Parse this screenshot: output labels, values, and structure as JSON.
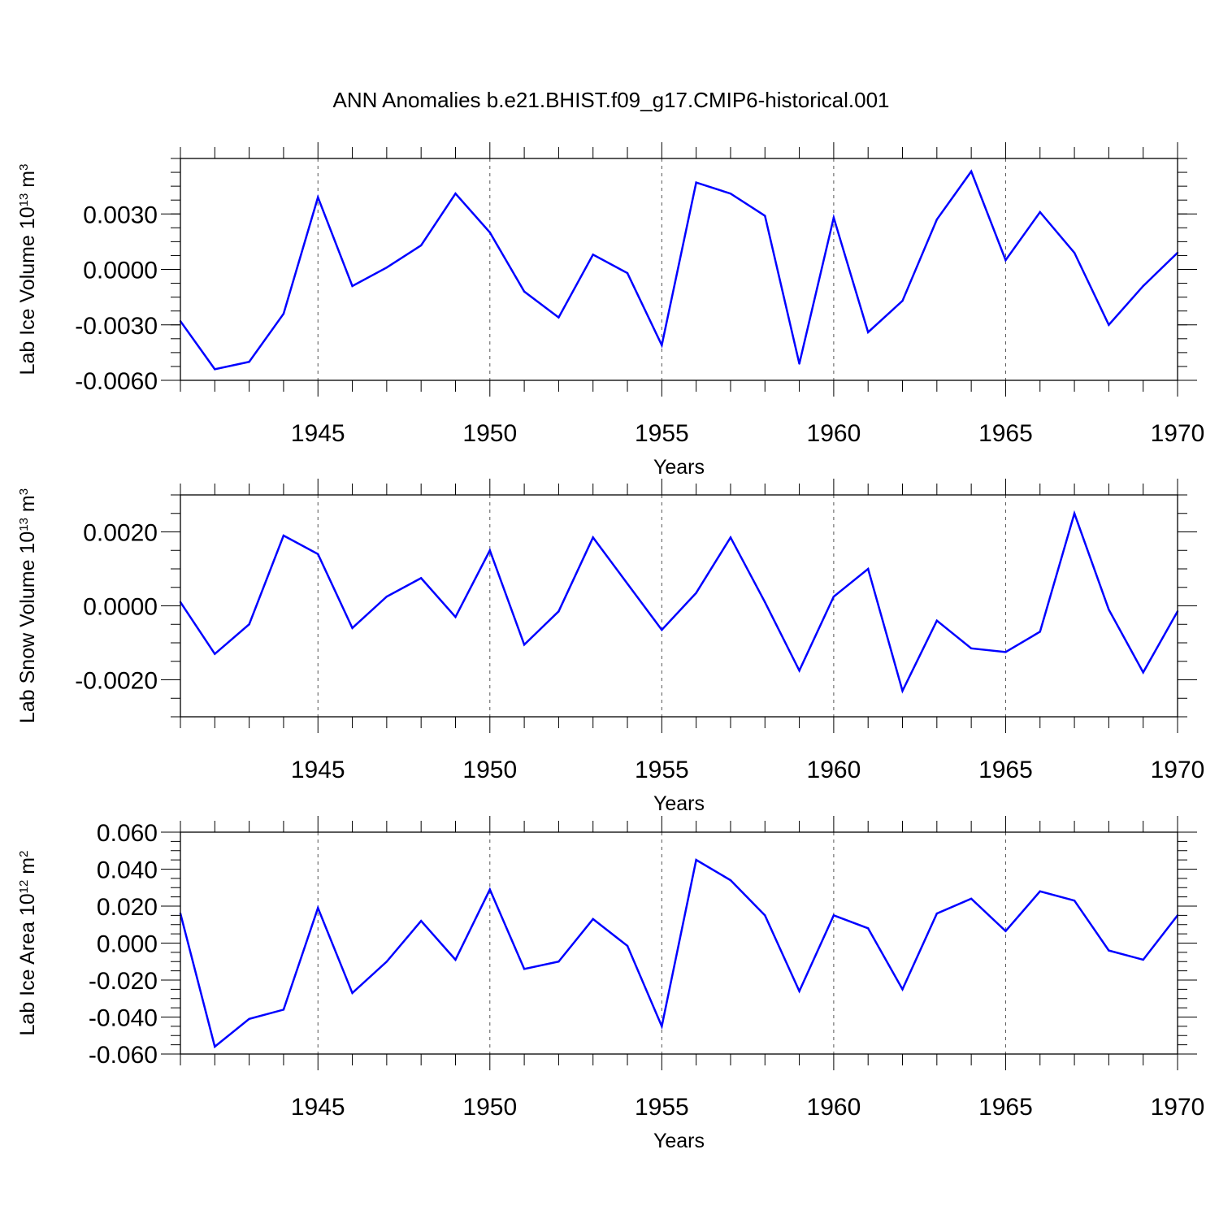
{
  "title": "ANN Anomalies b.e21.BHIST.f09_g17.CMIP6-historical.001",
  "line_color": "#0000ff",
  "chart_data": [
    {
      "type": "line",
      "name": "lab-ice-volume",
      "ylabel_main": "Lab Ice Volume 10",
      "ylabel_exp": "13",
      "ylabel_unit": " m",
      "ylabel_unit_exp": "3",
      "xlabel": "Years",
      "xlim": [
        1941,
        1970
      ],
      "ylim": [
        -0.006,
        0.006
      ],
      "major_yticks": [
        -0.006,
        -0.003,
        0.0,
        0.003
      ],
      "ytick_labels": [
        "-0.0060",
        "-0.0030",
        "0.0000",
        "0.0030"
      ],
      "minor_ystep": 0.00075,
      "major_xticks": [
        1945,
        1950,
        1955,
        1960,
        1965,
        1970
      ],
      "xtick_labels": [
        "1945",
        "1950",
        "1955",
        "1960",
        "1965",
        "1970"
      ],
      "x": [
        1941,
        1942,
        1943,
        1944,
        1945,
        1946,
        1947,
        1948,
        1949,
        1950,
        1951,
        1952,
        1953,
        1954,
        1955,
        1956,
        1957,
        1958,
        1959,
        1960,
        1961,
        1962,
        1963,
        1964,
        1965,
        1966,
        1967,
        1968,
        1969,
        1970
      ],
      "values": [
        -0.0028,
        -0.0054,
        -0.005,
        -0.0024,
        0.0039,
        -0.0009,
        0.0001,
        0.0013,
        0.0041,
        0.002,
        -0.0012,
        -0.0026,
        0.0008,
        -0.0002,
        -0.0041,
        0.0047,
        0.0041,
        0.0029,
        -0.0051,
        0.0028,
        -0.0034,
        -0.0017,
        0.0027,
        0.0053,
        0.0005,
        0.0031,
        0.0009,
        -0.003,
        -0.0009,
        0.0009
      ]
    },
    {
      "type": "line",
      "name": "lab-snow-volume",
      "ylabel_main": "Lab Snow Volume 10",
      "ylabel_exp": "13",
      "ylabel_unit": " m",
      "ylabel_unit_exp": "3",
      "xlabel": "Years",
      "xlim": [
        1941,
        1970
      ],
      "ylim": [
        -0.003,
        0.003
      ],
      "major_yticks": [
        -0.002,
        0.0,
        0.002
      ],
      "ytick_labels": [
        "-0.0020",
        "0.0000",
        "0.0020"
      ],
      "minor_ystep": 0.0005,
      "major_xticks": [
        1945,
        1950,
        1955,
        1960,
        1965,
        1970
      ],
      "xtick_labels": [
        "1945",
        "1950",
        "1955",
        "1960",
        "1965",
        "1970"
      ],
      "x": [
        1941,
        1942,
        1943,
        1944,
        1945,
        1946,
        1947,
        1948,
        1949,
        1950,
        1951,
        1952,
        1953,
        1954,
        1955,
        1956,
        1957,
        1958,
        1959,
        1960,
        1961,
        1962,
        1963,
        1964,
        1965,
        1966,
        1967,
        1968,
        1969,
        1970
      ],
      "values": [
        0.0001,
        -0.0013,
        -0.0005,
        0.0019,
        0.0014,
        -0.0006,
        0.00025,
        0.00075,
        -0.0003,
        0.0015,
        -0.00105,
        -0.00015,
        0.00185,
        0.0006,
        -0.00065,
        0.00035,
        0.00185,
        0.0001,
        -0.00175,
        0.00025,
        0.001,
        -0.0023,
        -0.0004,
        -0.00115,
        -0.00125,
        -0.0007,
        0.0025,
        -0.0001,
        -0.0018,
        -0.00015
      ]
    },
    {
      "type": "line",
      "name": "lab-ice-area",
      "ylabel_main": "Lab Ice Area 10",
      "ylabel_exp": "12",
      "ylabel_unit": " m",
      "ylabel_unit_exp": "2",
      "xlabel": "Years",
      "xlim": [
        1941,
        1970
      ],
      "ylim": [
        -0.06,
        0.06
      ],
      "major_yticks": [
        -0.06,
        -0.04,
        -0.02,
        0.0,
        0.02,
        0.04,
        0.06
      ],
      "ytick_labels": [
        "-0.060",
        "-0.040",
        "-0.020",
        "0.000",
        "0.020",
        "0.040",
        "0.060"
      ],
      "minor_ystep": 0.005,
      "major_xticks": [
        1945,
        1950,
        1955,
        1960,
        1965,
        1970
      ],
      "xtick_labels": [
        "1945",
        "1950",
        "1955",
        "1960",
        "1965",
        "1970"
      ],
      "x": [
        1941,
        1942,
        1943,
        1944,
        1945,
        1946,
        1947,
        1948,
        1949,
        1950,
        1951,
        1952,
        1953,
        1954,
        1955,
        1956,
        1957,
        1958,
        1959,
        1960,
        1961,
        1962,
        1963,
        1964,
        1965,
        1966,
        1967,
        1968,
        1969,
        1970
      ],
      "values": [
        0.016,
        -0.056,
        -0.041,
        -0.036,
        0.019,
        -0.027,
        -0.01,
        0.012,
        -0.009,
        0.029,
        -0.014,
        -0.01,
        0.013,
        -0.0015,
        -0.045,
        0.045,
        0.034,
        0.015,
        -0.026,
        0.015,
        0.008,
        -0.025,
        0.016,
        0.024,
        0.0065,
        0.028,
        0.023,
        -0.004,
        -0.009,
        0.015
      ]
    }
  ]
}
